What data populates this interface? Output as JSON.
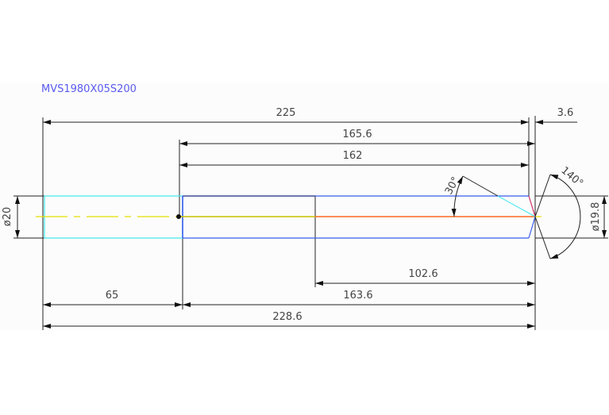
{
  "drawing": {
    "part_number": "MVS1980X05S200",
    "dimensions": {
      "overall_to_tip_shoulder": "225",
      "tip_length": "3.6",
      "from_shank_end_to_tip": "165.6",
      "from_shank_end_to_shoulder": "162",
      "flute_length": "102.6",
      "shank_length": "65",
      "body_length": "163.6",
      "overall_length": "228.6",
      "shank_diameter": "ø20",
      "body_diameter": "ø19.8",
      "helix_angle": "30°",
      "point_angle": "140°"
    },
    "colors": {
      "shank": "#40e8f0",
      "body": "#3a5cf0",
      "centerline": "#e8e000",
      "flute_center": "#ff6a20",
      "tip": "#d0306a",
      "text_title": "#5a5af0",
      "dimension": "#222222"
    }
  }
}
